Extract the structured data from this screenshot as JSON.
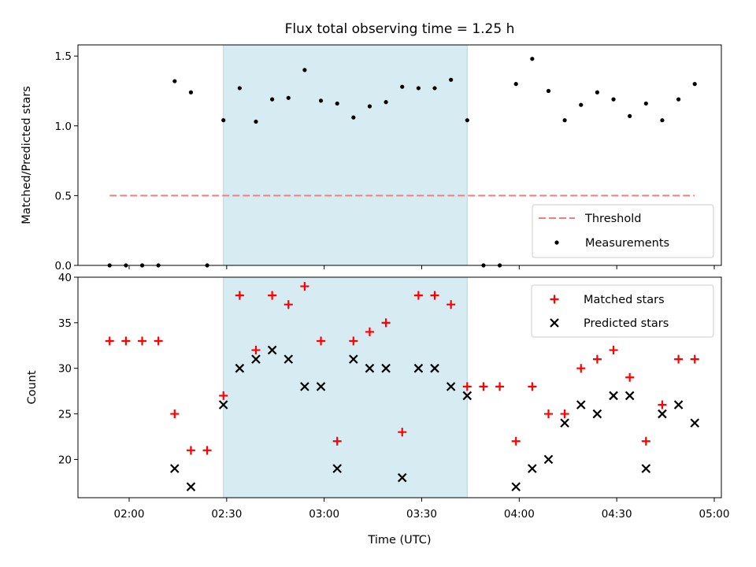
{
  "chart_data": [
    {
      "type": "scatter",
      "title": "Flux total observing time = 1.25 h",
      "ylabel": "Matched/Predicted stars",
      "ylim": [
        0,
        1.58
      ],
      "yticks": [
        0.0,
        0.5,
        1.0,
        1.5
      ],
      "ytick_labels": [
        "0.0",
        "0.5",
        "1.0",
        "1.5"
      ],
      "x": [
        "01:54",
        "01:59",
        "02:04",
        "02:09",
        "02:14",
        "02:19",
        "02:24",
        "02:29",
        "02:34",
        "02:39",
        "02:44",
        "02:49",
        "02:54",
        "02:59",
        "03:04",
        "03:09",
        "03:14",
        "03:19",
        "03:24",
        "03:29",
        "03:34",
        "03:39",
        "03:44",
        "03:49",
        "03:54",
        "03:59",
        "04:04",
        "04:09",
        "04:14",
        "04:19",
        "04:24",
        "04:29",
        "04:34",
        "04:39",
        "04:44",
        "04:49",
        "04:54"
      ],
      "shaded_span": [
        "02:29",
        "03:44"
      ],
      "threshold": 0.5,
      "threshold_span": [
        "01:54",
        "04:54"
      ],
      "series": [
        {
          "name": "Measurements",
          "marker": "dot",
          "color": "#000000",
          "values": [
            0,
            0,
            0,
            0,
            1.32,
            1.24,
            0,
            1.04,
            1.27,
            1.03,
            1.19,
            1.2,
            1.4,
            1.18,
            1.16,
            1.06,
            1.14,
            1.17,
            1.28,
            1.27,
            1.27,
            1.33,
            1.04,
            0,
            0,
            1.3,
            1.48,
            1.25,
            1.04,
            1.15,
            1.24,
            1.19,
            1.07,
            1.16,
            1.04,
            1.19,
            1.3
          ]
        },
        {
          "name": "Threshold",
          "marker": "dashed-line",
          "color": "#f08080",
          "values": [
            0.5,
            0.5
          ]
        }
      ],
      "legend": {
        "position": "lower-right",
        "entries": [
          "Threshold",
          "Measurements"
        ]
      }
    },
    {
      "type": "scatter",
      "xlabel": "Time (UTC)",
      "ylabel": "Count",
      "ylim": [
        15.8,
        40
      ],
      "yticks": [
        20,
        25,
        30,
        35,
        40
      ],
      "ytick_labels": [
        "20",
        "25",
        "30",
        "35",
        "40"
      ],
      "xticks": [
        "02:00",
        "02:30",
        "03:00",
        "03:30",
        "04:00",
        "04:30",
        "05:00"
      ],
      "xlim": [
        "01:45",
        "05:00"
      ],
      "shaded_span": [
        "02:29",
        "03:44"
      ],
      "series": [
        {
          "name": "Matched stars",
          "marker": "plus",
          "color": "#ff0000",
          "x": [
            "01:54",
            "01:59",
            "02:04",
            "02:09",
            "02:14",
            "02:19",
            "02:24",
            "02:29",
            "02:34",
            "02:39",
            "02:44",
            "02:49",
            "02:54",
            "02:59",
            "03:04",
            "03:09",
            "03:14",
            "03:19",
            "03:24",
            "03:29",
            "03:34",
            "03:39",
            "03:44",
            "03:49",
            "03:54",
            "03:59",
            "04:04",
            "04:09",
            "04:14",
            "04:19",
            "04:24",
            "04:29",
            "04:34",
            "04:39",
            "04:44",
            "04:49",
            "04:54"
          ],
          "values": [
            33,
            33,
            33,
            33,
            25,
            21,
            21,
            27,
            38,
            32,
            38,
            37,
            39,
            33,
            22,
            33,
            34,
            35,
            23,
            38,
            38,
            37,
            28,
            28,
            28,
            22,
            28,
            25,
            25,
            30,
            31,
            32,
            29,
            22,
            26,
            31,
            31
          ]
        },
        {
          "name": "Predicted stars",
          "marker": "x",
          "color": "#000000",
          "x": [
            "02:14",
            "02:19",
            "02:29",
            "02:34",
            "02:39",
            "02:44",
            "02:49",
            "02:54",
            "02:59",
            "03:04",
            "03:09",
            "03:14",
            "03:19",
            "03:24",
            "03:29",
            "03:34",
            "03:39",
            "03:44",
            "03:59",
            "04:04",
            "04:09",
            "04:14",
            "04:19",
            "04:24",
            "04:29",
            "04:34",
            "04:39",
            "04:44",
            "04:49",
            "04:54"
          ],
          "values": [
            19,
            17,
            26,
            30,
            31,
            32,
            31,
            28,
            28,
            19,
            31,
            30,
            30,
            18,
            30,
            30,
            28,
            27,
            17,
            19,
            20,
            24,
            26,
            25,
            27,
            27,
            19,
            25,
            26,
            24
          ]
        }
      ],
      "legend": {
        "position": "upper-right",
        "entries": [
          "Matched stars",
          "Predicted stars"
        ]
      }
    }
  ]
}
